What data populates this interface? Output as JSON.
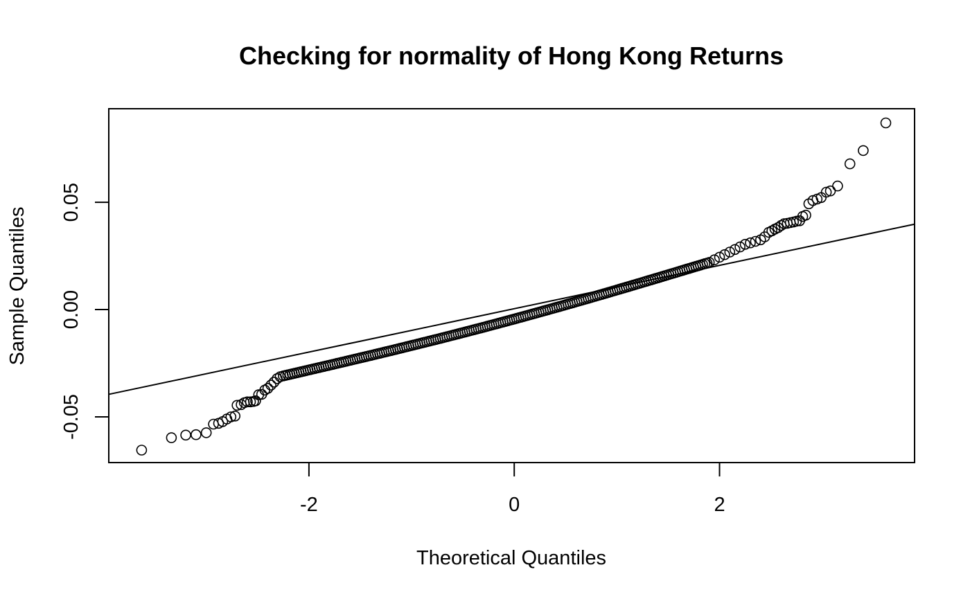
{
  "chart_data": {
    "type": "scatter",
    "title": "Checking for normality of Hong Kong Returns",
    "xlabel": "Theoretical Quantiles",
    "ylabel": "Sample Quantiles",
    "xlim": [
      -3.95,
      3.9
    ],
    "ylim": [
      -0.0713,
      0.0936
    ],
    "x_ticks": [
      -2,
      0,
      2
    ],
    "x_tick_labels": [
      "-2",
      "0",
      "2"
    ],
    "y_ticks": [
      -0.05,
      0,
      0.05
    ],
    "y_tick_labels": [
      "-0.05",
      "0.00",
      "0.05"
    ],
    "grid": false,
    "legend": "none",
    "reference_line": {
      "x": [
        -3.95,
        3.9
      ],
      "y": [
        -0.0395,
        0.0398
      ]
    },
    "points": [
      [
        -3.63,
        -0.0655
      ],
      [
        -3.34,
        -0.0597
      ],
      [
        -3.2,
        -0.0585
      ],
      [
        -3.1,
        -0.0583
      ],
      [
        -3.0,
        -0.0574
      ],
      [
        -2.93,
        -0.0534
      ],
      [
        -2.88,
        -0.053
      ],
      [
        -2.84,
        -0.0522
      ],
      [
        -2.8,
        -0.051
      ],
      [
        -2.76,
        -0.05
      ],
      [
        -2.72,
        -0.0496
      ],
      [
        -2.7,
        -0.0446
      ],
      [
        -2.66,
        -0.0443
      ],
      [
        -2.63,
        -0.0434
      ],
      [
        -2.6,
        -0.043
      ],
      [
        -2.57,
        -0.043
      ],
      [
        -2.54,
        -0.0428
      ],
      [
        -2.52,
        -0.0425
      ],
      [
        -2.49,
        -0.0397
      ],
      [
        -2.46,
        -0.0395
      ],
      [
        -2.43,
        -0.0375
      ],
      [
        -2.4,
        -0.0367
      ],
      [
        -2.37,
        -0.0352
      ],
      [
        -2.34,
        -0.0338
      ],
      [
        -2.31,
        -0.0322
      ],
      [
        -2.28,
        -0.0313
      ],
      [
        -2.25,
        -0.0309
      ]
    ],
    "bulk_segment": {
      "x": [
        -2.25,
        1.9
      ],
      "y": [
        -0.0309,
        0.022
      ]
    },
    "upper_points": [
      [
        1.9,
        0.022
      ],
      [
        1.95,
        0.0232
      ],
      [
        2.0,
        0.0244
      ],
      [
        2.05,
        0.0256
      ],
      [
        2.1,
        0.0268
      ],
      [
        2.15,
        0.028
      ],
      [
        2.2,
        0.0292
      ],
      [
        2.25,
        0.0304
      ],
      [
        2.3,
        0.0311
      ],
      [
        2.35,
        0.0318
      ],
      [
        2.4,
        0.0325
      ],
      [
        2.44,
        0.0339
      ],
      [
        2.48,
        0.036
      ],
      [
        2.51,
        0.0367
      ],
      [
        2.54,
        0.0375
      ],
      [
        2.57,
        0.0382
      ],
      [
        2.6,
        0.0392
      ],
      [
        2.63,
        0.04
      ],
      [
        2.66,
        0.0402
      ],
      [
        2.69,
        0.0405
      ],
      [
        2.72,
        0.0408
      ],
      [
        2.75,
        0.0412
      ],
      [
        2.78,
        0.0414
      ],
      [
        2.81,
        0.0434
      ],
      [
        2.84,
        0.044
      ],
      [
        2.87,
        0.0493
      ],
      [
        2.91,
        0.0508
      ],
      [
        2.95,
        0.0515
      ],
      [
        2.99,
        0.0522
      ],
      [
        3.04,
        0.0547
      ],
      [
        3.08,
        0.0553
      ],
      [
        3.15,
        0.0576
      ],
      [
        3.27,
        0.0679
      ],
      [
        3.4,
        0.0741
      ],
      [
        3.62,
        0.087
      ]
    ]
  }
}
